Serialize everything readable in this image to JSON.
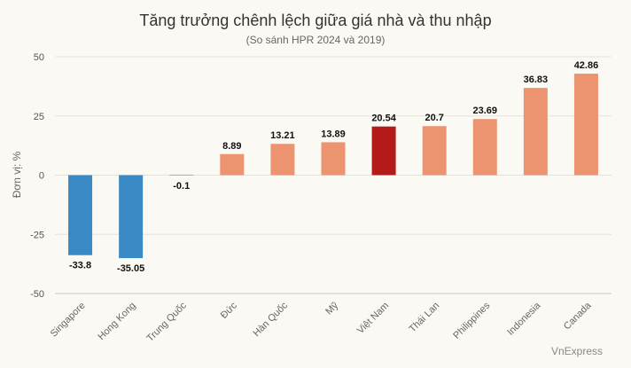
{
  "chart_data": {
    "type": "bar",
    "title": "Tăng trưởng chênh lệch giữa giá nhà và thu nhập",
    "subtitle": "(So sánh HPR 2024 và 2019)",
    "ylabel": "Đơn vị: %",
    "xlabel": "",
    "ylim": [
      -50,
      50
    ],
    "yticks": [
      50,
      25,
      0,
      -25,
      -50
    ],
    "grid": true,
    "categories": [
      "Singapore",
      "Hong Kong",
      "Trung Quốc",
      "Đức",
      "Hàn Quốc",
      "Mỹ",
      "Việt Nam",
      "Thái Lan",
      "Philippines",
      "Indonesia",
      "Canada"
    ],
    "values": [
      -33.8,
      -35.05,
      -0.1,
      8.89,
      13.21,
      13.89,
      20.54,
      20.7,
      23.69,
      36.83,
      42.86
    ],
    "data_labels": [
      "-33.8",
      "-35.05",
      "-0.1",
      "8.89",
      "13.21",
      "13.89",
      "20.54",
      "20.7",
      "23.69",
      "36.83",
      "42.86"
    ],
    "highlight": "Việt Nam",
    "colors": {
      "negative": "#3b89c4",
      "positive": "#ec9370",
      "highlight": "#b41a1a",
      "grid": "#e4e2dc",
      "baseline": "#c8c8d8"
    },
    "credit": "VnExpress"
  }
}
